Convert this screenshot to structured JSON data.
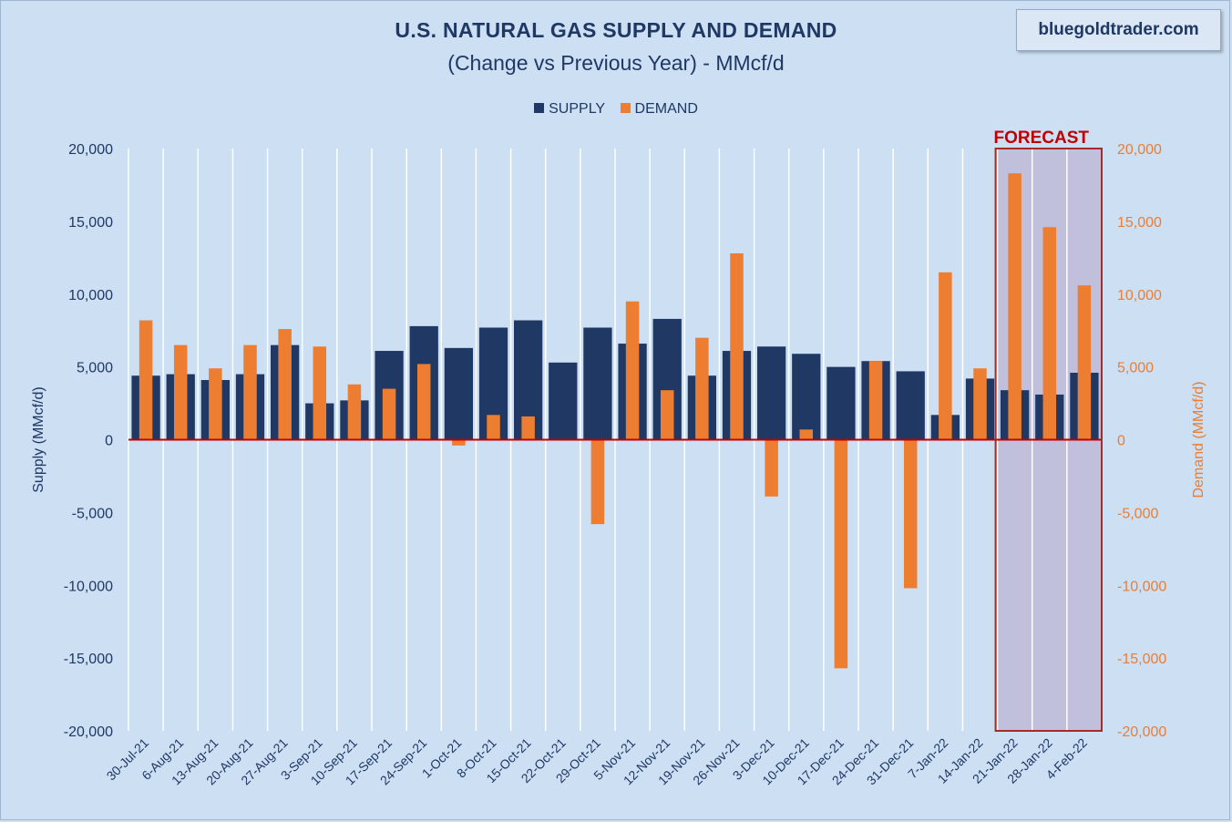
{
  "header": {
    "title": "U.S. NATURAL GAS SUPPLY  AND DEMAND",
    "subtitle": "(Change vs Previous Year) - MMcf/d",
    "brand": "bluegoldtrader.com",
    "forecast_label": "FORECAST"
  },
  "colors": {
    "supply": "#1f3864",
    "demand": "#ed7d31",
    "zero_line": "#c00000",
    "forecast_border": "#a52a2a",
    "forecast_fill": "#b7a4c8",
    "grid": "#ffffff",
    "left_axis_text": "#1f3864",
    "right_axis_text": "#ed7d31"
  },
  "chart_data": {
    "type": "bar",
    "title": "U.S. NATURAL GAS SUPPLY  AND DEMAND",
    "subtitle": "(Change vs Previous Year) - MMcf/d",
    "ylabel": "Supply (MMcf/d)",
    "y2label": "Demand (MMcf/d)",
    "ylim": [
      -20000,
      20000
    ],
    "y2lim": [
      -20000,
      20000
    ],
    "yticks": [
      20000,
      15000,
      10000,
      5000,
      0,
      -5000,
      -10000,
      -15000,
      -20000
    ],
    "ytick_labels": [
      "20,000",
      "15,000",
      "10,000",
      "5,000",
      "0",
      "-5,000",
      "-10,000",
      "-15,000",
      "-20,000"
    ],
    "legend_position": "top-center",
    "grid": "vertical",
    "forecast_from_index": 25,
    "categories": [
      "30-Jul-21",
      "6-Aug-21",
      "13-Aug-21",
      "20-Aug-21",
      "27-Aug-21",
      "3-Sep-21",
      "10-Sep-21",
      "17-Sep-21",
      "24-Sep-21",
      "1-Oct-21",
      "8-Oct-21",
      "15-Oct-21",
      "22-Oct-21",
      "29-Oct-21",
      "5-Nov-21",
      "12-Nov-21",
      "19-Nov-21",
      "26-Nov-21",
      "3-Dec-21",
      "10-Dec-21",
      "17-Dec-21",
      "24-Dec-21",
      "31-Dec-21",
      "7-Jan-22",
      "14-Jan-22",
      "21-Jan-22",
      "28-Jan-22",
      "4-Feb-22"
    ],
    "series": [
      {
        "name": "SUPPLY",
        "values": [
          4400,
          4500,
          4100,
          4500,
          6500,
          2500,
          2700,
          6100,
          7800,
          6300,
          7700,
          8200,
          5300,
          7700,
          6600,
          8300,
          4400,
          6100,
          6400,
          5900,
          5000,
          5400,
          4700,
          1700,
          4200,
          3400,
          3100,
          4600
        ]
      },
      {
        "name": "DEMAND",
        "values": [
          8200,
          6500,
          4900,
          6500,
          7600,
          6400,
          3800,
          3500,
          5200,
          -400,
          1700,
          1600,
          null,
          -5800,
          9500,
          3400,
          7000,
          12800,
          -3900,
          700,
          -15700,
          5400,
          -10200,
          11500,
          4900,
          18300,
          14600,
          10600
        ]
      }
    ]
  }
}
